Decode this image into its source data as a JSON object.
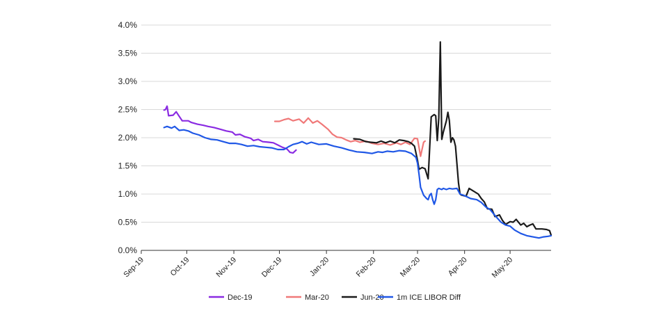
{
  "chart_data": {
    "type": "line",
    "title": "",
    "xlabel": "",
    "ylabel": "",
    "ylim": [
      0,
      4.0
    ],
    "y_ticks": [
      "0.0%",
      "0.5%",
      "1.0%",
      "1.5%",
      "2.0%",
      "2.5%",
      "3.0%",
      "3.5%",
      "4.0%"
    ],
    "x_ticks": [
      "Sep-19",
      "Oct-19",
      "Nov-19",
      "Dec-19",
      "Jan-20",
      "Feb-20",
      "Mar-20",
      "Apr-20",
      "May-20"
    ],
    "xlim": [
      "2019-09-01",
      "2020-05-28"
    ],
    "grid": "horizontal",
    "legend_position": "bottom",
    "series": [
      {
        "name": "Dec-19",
        "color": "#8a2be2",
        "points": [
          [
            "2019-09-16",
            2.49
          ],
          [
            "2019-09-17",
            2.5
          ],
          [
            "2019-09-18",
            2.56
          ],
          [
            "2019-09-19",
            2.39
          ],
          [
            "2019-09-22",
            2.4
          ],
          [
            "2019-09-24",
            2.46
          ],
          [
            "2019-09-26",
            2.38
          ],
          [
            "2019-09-28",
            2.3
          ],
          [
            "2019-10-02",
            2.3
          ],
          [
            "2019-10-04",
            2.27
          ],
          [
            "2019-10-08",
            2.24
          ],
          [
            "2019-10-12",
            2.22
          ],
          [
            "2019-10-15",
            2.2
          ],
          [
            "2019-10-19",
            2.18
          ],
          [
            "2019-10-23",
            2.15
          ],
          [
            "2019-10-27",
            2.12
          ],
          [
            "2019-10-31",
            2.1
          ],
          [
            "2019-11-02",
            2.05
          ],
          [
            "2019-11-05",
            2.06
          ],
          [
            "2019-11-08",
            2.02
          ],
          [
            "2019-11-12",
            1.99
          ],
          [
            "2019-11-14",
            1.95
          ],
          [
            "2019-11-17",
            1.97
          ],
          [
            "2019-11-20",
            1.93
          ],
          [
            "2019-11-24",
            1.92
          ],
          [
            "2019-11-27",
            1.91
          ],
          [
            "2019-11-30",
            1.87
          ],
          [
            "2019-12-03",
            1.83
          ],
          [
            "2019-12-06",
            1.8
          ],
          [
            "2019-12-08",
            1.74
          ],
          [
            "2019-12-10",
            1.73
          ],
          [
            "2019-12-12",
            1.78
          ]
        ]
      },
      {
        "name": "Mar-20",
        "color": "#f07878",
        "points": [
          [
            "2019-11-28",
            2.29
          ],
          [
            "2019-12-01",
            2.29
          ],
          [
            "2019-12-04",
            2.32
          ],
          [
            "2019-12-07",
            2.34
          ],
          [
            "2019-12-10",
            2.3
          ],
          [
            "2019-12-14",
            2.33
          ],
          [
            "2019-12-17",
            2.26
          ],
          [
            "2019-12-20",
            2.35
          ],
          [
            "2019-12-23",
            2.26
          ],
          [
            "2019-12-26",
            2.3
          ],
          [
            "2019-12-29",
            2.24
          ],
          [
            "2020-01-02",
            2.15
          ],
          [
            "2020-01-05",
            2.06
          ],
          [
            "2020-01-08",
            2.01
          ],
          [
            "2020-01-11",
            2.0
          ],
          [
            "2020-01-14",
            1.96
          ],
          [
            "2020-01-17",
            1.93
          ],
          [
            "2020-01-20",
            1.95
          ],
          [
            "2020-01-23",
            1.92
          ],
          [
            "2020-01-27",
            1.94
          ],
          [
            "2020-01-31",
            1.9
          ],
          [
            "2020-02-04",
            1.88
          ],
          [
            "2020-02-08",
            1.9
          ],
          [
            "2020-02-12",
            1.87
          ],
          [
            "2020-02-16",
            1.91
          ],
          [
            "2020-02-19",
            1.88
          ],
          [
            "2020-02-22",
            1.92
          ],
          [
            "2020-02-25",
            1.88
          ],
          [
            "2020-02-28",
            1.99
          ],
          [
            "2020-03-01",
            1.98
          ],
          [
            "2020-03-03",
            1.67
          ],
          [
            "2020-03-05",
            1.92
          ],
          [
            "2020-03-06",
            1.94
          ]
        ]
      },
      {
        "name": "Jun-20",
        "color": "#1a1a1a",
        "points": [
          [
            "2020-01-19",
            1.98
          ],
          [
            "2020-01-23",
            1.97
          ],
          [
            "2020-01-27",
            1.93
          ],
          [
            "2020-01-30",
            1.92
          ],
          [
            "2020-02-03",
            1.91
          ],
          [
            "2020-02-06",
            1.94
          ],
          [
            "2020-02-09",
            1.91
          ],
          [
            "2020-02-12",
            1.94
          ],
          [
            "2020-02-15",
            1.91
          ],
          [
            "2020-02-18",
            1.96
          ],
          [
            "2020-02-21",
            1.95
          ],
          [
            "2020-02-24",
            1.93
          ],
          [
            "2020-02-26",
            1.9
          ],
          [
            "2020-02-28",
            1.85
          ],
          [
            "2020-03-01",
            1.6
          ],
          [
            "2020-03-02",
            1.44
          ],
          [
            "2020-03-04",
            1.47
          ],
          [
            "2020-03-06",
            1.45
          ],
          [
            "2020-03-08",
            1.27
          ],
          [
            "2020-03-10",
            2.37
          ],
          [
            "2020-03-12",
            2.41
          ],
          [
            "2020-03-13",
            2.39
          ],
          [
            "2020-03-14",
            1.95
          ],
          [
            "2020-03-15",
            2.35
          ],
          [
            "2020-03-16",
            3.7
          ],
          [
            "2020-03-17",
            1.97
          ],
          [
            "2020-03-18",
            2.1
          ],
          [
            "2020-03-20",
            2.3
          ],
          [
            "2020-03-21",
            2.45
          ],
          [
            "2020-03-22",
            2.3
          ],
          [
            "2020-03-23",
            1.92
          ],
          [
            "2020-03-24",
            2.0
          ],
          [
            "2020-03-25",
            1.96
          ],
          [
            "2020-03-26",
            1.85
          ],
          [
            "2020-03-28",
            1.2
          ],
          [
            "2020-03-29",
            1.0
          ],
          [
            "2020-03-30",
            0.98
          ],
          [
            "2020-04-02",
            0.96
          ],
          [
            "2020-04-04",
            1.1
          ],
          [
            "2020-04-07",
            1.05
          ],
          [
            "2020-04-10",
            1.0
          ],
          [
            "2020-04-12",
            0.92
          ],
          [
            "2020-04-14",
            0.86
          ],
          [
            "2020-04-16",
            0.74
          ],
          [
            "2020-04-19",
            0.73
          ],
          [
            "2020-04-21",
            0.6
          ],
          [
            "2020-04-24",
            0.63
          ],
          [
            "2020-04-26",
            0.53
          ],
          [
            "2020-04-28",
            0.46
          ],
          [
            "2020-05-01",
            0.51
          ],
          [
            "2020-05-03",
            0.5
          ],
          [
            "2020-05-05",
            0.55
          ],
          [
            "2020-05-08",
            0.45
          ],
          [
            "2020-05-10",
            0.48
          ],
          [
            "2020-05-12",
            0.42
          ],
          [
            "2020-05-14",
            0.45
          ],
          [
            "2020-05-16",
            0.47
          ],
          [
            "2020-05-18",
            0.38
          ],
          [
            "2020-05-22",
            0.38
          ],
          [
            "2020-05-25",
            0.37
          ],
          [
            "2020-05-27",
            0.35
          ],
          [
            "2020-05-28",
            0.27
          ]
        ]
      },
      {
        "name": "1m ICE LIBOR Diff",
        "color": "#1f57e6",
        "points": [
          [
            "2019-09-16",
            2.18
          ],
          [
            "2019-09-18",
            2.2
          ],
          [
            "2019-09-21",
            2.17
          ],
          [
            "2019-09-23",
            2.2
          ],
          [
            "2019-09-26",
            2.13
          ],
          [
            "2019-09-29",
            2.14
          ],
          [
            "2019-10-02",
            2.12
          ],
          [
            "2019-10-05",
            2.08
          ],
          [
            "2019-10-09",
            2.05
          ],
          [
            "2019-10-13",
            2.0
          ],
          [
            "2019-10-17",
            1.97
          ],
          [
            "2019-10-21",
            1.96
          ],
          [
            "2019-10-25",
            1.93
          ],
          [
            "2019-10-29",
            1.9
          ],
          [
            "2019-11-02",
            1.9
          ],
          [
            "2019-11-06",
            1.88
          ],
          [
            "2019-11-10",
            1.85
          ],
          [
            "2019-11-14",
            1.86
          ],
          [
            "2019-11-18",
            1.84
          ],
          [
            "2019-11-22",
            1.83
          ],
          [
            "2019-11-26",
            1.82
          ],
          [
            "2019-11-30",
            1.79
          ],
          [
            "2019-12-04",
            1.79
          ],
          [
            "2019-12-07",
            1.84
          ],
          [
            "2019-12-10",
            1.88
          ],
          [
            "2019-12-13",
            1.9
          ],
          [
            "2019-12-16",
            1.93
          ],
          [
            "2019-12-19",
            1.89
          ],
          [
            "2019-12-22",
            1.92
          ],
          [
            "2019-12-27",
            1.88
          ],
          [
            "2020-01-01",
            1.89
          ],
          [
            "2020-01-06",
            1.85
          ],
          [
            "2020-01-11",
            1.82
          ],
          [
            "2020-01-16",
            1.78
          ],
          [
            "2020-01-21",
            1.75
          ],
          [
            "2020-01-26",
            1.74
          ],
          [
            "2020-01-31",
            1.72
          ],
          [
            "2020-02-04",
            1.75
          ],
          [
            "2020-02-07",
            1.74
          ],
          [
            "2020-02-10",
            1.76
          ],
          [
            "2020-02-14",
            1.75
          ],
          [
            "2020-02-18",
            1.77
          ],
          [
            "2020-02-22",
            1.76
          ],
          [
            "2020-02-26",
            1.72
          ],
          [
            "2020-02-29",
            1.65
          ],
          [
            "2020-03-01",
            1.55
          ],
          [
            "2020-03-02",
            1.35
          ],
          [
            "2020-03-03",
            1.12
          ],
          [
            "2020-03-05",
            0.98
          ],
          [
            "2020-03-07",
            0.92
          ],
          [
            "2020-03-08",
            0.9
          ],
          [
            "2020-03-09",
            0.98
          ],
          [
            "2020-03-10",
            1.01
          ],
          [
            "2020-03-11",
            0.9
          ],
          [
            "2020-03-12",
            0.82
          ],
          [
            "2020-03-13",
            0.9
          ],
          [
            "2020-03-14",
            1.08
          ],
          [
            "2020-03-15",
            1.1
          ],
          [
            "2020-03-17",
            1.08
          ],
          [
            "2020-03-18",
            1.1
          ],
          [
            "2020-03-20",
            1.08
          ],
          [
            "2020-03-22",
            1.1
          ],
          [
            "2020-03-24",
            1.09
          ],
          [
            "2020-03-27",
            1.1
          ],
          [
            "2020-03-29",
            1.0
          ],
          [
            "2020-04-01",
            0.97
          ],
          [
            "2020-04-05",
            0.92
          ],
          [
            "2020-04-09",
            0.9
          ],
          [
            "2020-04-12",
            0.85
          ],
          [
            "2020-04-15",
            0.77
          ],
          [
            "2020-04-18",
            0.72
          ],
          [
            "2020-04-21",
            0.62
          ],
          [
            "2020-04-25",
            0.5
          ],
          [
            "2020-04-28",
            0.45
          ],
          [
            "2020-05-01",
            0.43
          ],
          [
            "2020-05-04",
            0.36
          ],
          [
            "2020-05-08",
            0.3
          ],
          [
            "2020-05-12",
            0.26
          ],
          [
            "2020-05-16",
            0.24
          ],
          [
            "2020-05-20",
            0.22
          ],
          [
            "2020-05-23",
            0.24
          ],
          [
            "2020-05-26",
            0.25
          ],
          [
            "2020-05-28",
            0.26
          ]
        ]
      }
    ]
  }
}
